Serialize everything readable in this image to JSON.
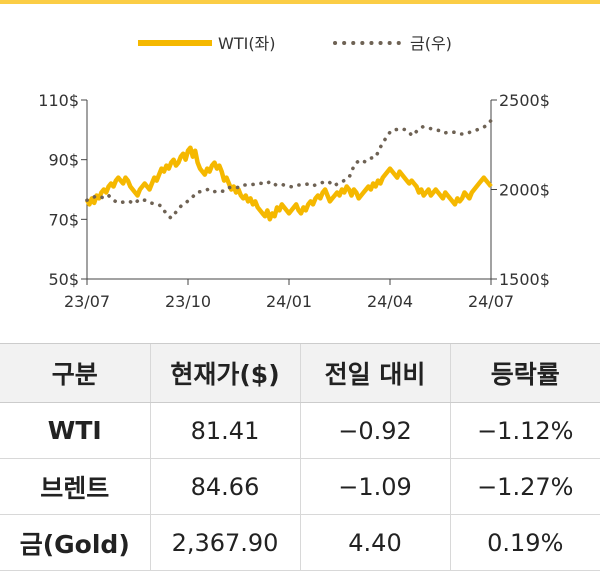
{
  "chart_data": {
    "type": "line",
    "legend_placement": "top-center",
    "grid": false,
    "x_tick_labels": [
      "23/07",
      "23/10",
      "24/01",
      "24/04",
      "24/07"
    ],
    "y_left_ticks": [
      "110$",
      "90$",
      "70$",
      "50$"
    ],
    "y_left_range": [
      50,
      110
    ],
    "y_right_ticks": [
      "2500$",
      "2000$",
      "1500$"
    ],
    "y_right_range": [
      1500,
      2500
    ],
    "series": [
      {
        "name": "WTI(좌)",
        "axis": "left",
        "style": "solid",
        "color": "#f5b800",
        "values": [
          76.5,
          75,
          77,
          75.5,
          78,
          77,
          79,
          80,
          79,
          81,
          82,
          81,
          83,
          84,
          83,
          82,
          84,
          83,
          81,
          80,
          79,
          78,
          80,
          81,
          82,
          81,
          80,
          82,
          84,
          83,
          85,
          87,
          86,
          88,
          87,
          89,
          90,
          88,
          89,
          91,
          92,
          90,
          93,
          94,
          91,
          93,
          89,
          87,
          86,
          85,
          87,
          86,
          88,
          89,
          87,
          88,
          86,
          83,
          84,
          82,
          80,
          81,
          79,
          80,
          78,
          77,
          78,
          76,
          77,
          75,
          76,
          74,
          73,
          72,
          71,
          73,
          70,
          72,
          71,
          74,
          73,
          75,
          74,
          73,
          72,
          73,
          74,
          75,
          73,
          72,
          74,
          73,
          75,
          76,
          75,
          77,
          78,
          77,
          79,
          80,
          78,
          76,
          77,
          78,
          79,
          78,
          80,
          79,
          81,
          80,
          78,
          80,
          79,
          77,
          78,
          79,
          80,
          81,
          80,
          82,
          81,
          83,
          82,
          84,
          85,
          86,
          87,
          86,
          85,
          84,
          86,
          85,
          84,
          83,
          82,
          83,
          82,
          81,
          79,
          80,
          78,
          79,
          80,
          78,
          79,
          80,
          79,
          78,
          77,
          79,
          78,
          77,
          76,
          75,
          77,
          76,
          77,
          79,
          78,
          77,
          79,
          80,
          81,
          82,
          83,
          84,
          83,
          82,
          81
        ],
        "last": 81.41
      },
      {
        "name": "금(우)",
        "axis": "right",
        "style": "dotted",
        "color": "#6e6254",
        "values": [
          1940,
          1955,
          1965,
          1955,
          1970,
          1940,
          1925,
          1930,
          1935,
          1920,
          1945,
          1940,
          1925,
          1920,
          1910,
          1870,
          1840,
          1875,
          1910,
          1930,
          1955,
          1985,
          1990,
          2000,
          1985,
          1995,
          1990,
          2010,
          2015,
          2010,
          2025,
          2025,
          2030,
          2035,
          2030,
          2045,
          2025,
          2030,
          2020,
          2015,
          2025,
          2025,
          2030,
          2020,
          2030,
          2040,
          2045,
          2020,
          2035,
          2050,
          2070,
          2140,
          2165,
          2155,
          2175,
          2180,
          2240,
          2290,
          2330,
          2335,
          2340,
          2330,
          2300,
          2330,
          2350,
          2345,
          2335,
          2330,
          2315,
          2320,
          2320,
          2310,
          2310,
          2320,
          2330,
          2340,
          2355,
          2385
        ],
        "last": 2367.9
      }
    ]
  },
  "table": {
    "headers": [
      "구분",
      "현재가($)",
      "전일 대비",
      "등락률"
    ],
    "rows": [
      [
        "WTI",
        "81.41",
        "−0.92",
        "−1.12%"
      ],
      [
        "브렌트",
        "84.66",
        "−1.09",
        "−1.27%"
      ],
      [
        "금(Gold)",
        "2,367.90",
        "4.40",
        "0.19%"
      ]
    ]
  }
}
